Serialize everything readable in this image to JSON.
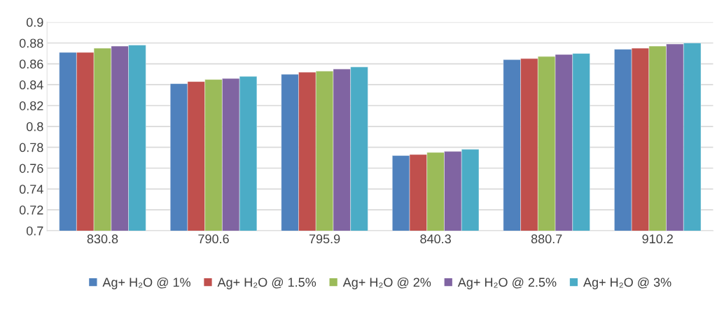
{
  "chart_data": {
    "type": "bar",
    "categories": [
      "830.8",
      "790.6",
      "795.9",
      "840.3",
      "880.7",
      "910.2"
    ],
    "series": [
      {
        "name": "Ag+ H₂O @ 1%",
        "color": "#4f81bd",
        "values": [
          0.871,
          0.841,
          0.85,
          0.772,
          0.864,
          0.874
        ]
      },
      {
        "name": "Ag+ H₂O @ 1.5%",
        "color": "#c0504d",
        "values": [
          0.871,
          0.843,
          0.852,
          0.773,
          0.865,
          0.875
        ]
      },
      {
        "name": "Ag+ H₂O @ 2%",
        "color": "#9bbb59",
        "values": [
          0.875,
          0.845,
          0.853,
          0.775,
          0.867,
          0.877
        ]
      },
      {
        "name": "Ag+ H₂O @ 2.5%",
        "color": "#8064a2",
        "values": [
          0.877,
          0.846,
          0.855,
          0.776,
          0.869,
          0.879
        ]
      },
      {
        "name": "Ag+ H₂O @ 3%",
        "color": "#4bacc6",
        "values": [
          0.878,
          0.848,
          0.857,
          0.778,
          0.87,
          0.88
        ]
      }
    ],
    "ylim": [
      0.7,
      0.9
    ],
    "yticks": [
      0.7,
      0.72,
      0.74,
      0.76,
      0.78,
      0.8,
      0.82,
      0.84,
      0.86,
      0.88,
      0.9
    ],
    "grid": "y",
    "legend": "bottom"
  }
}
